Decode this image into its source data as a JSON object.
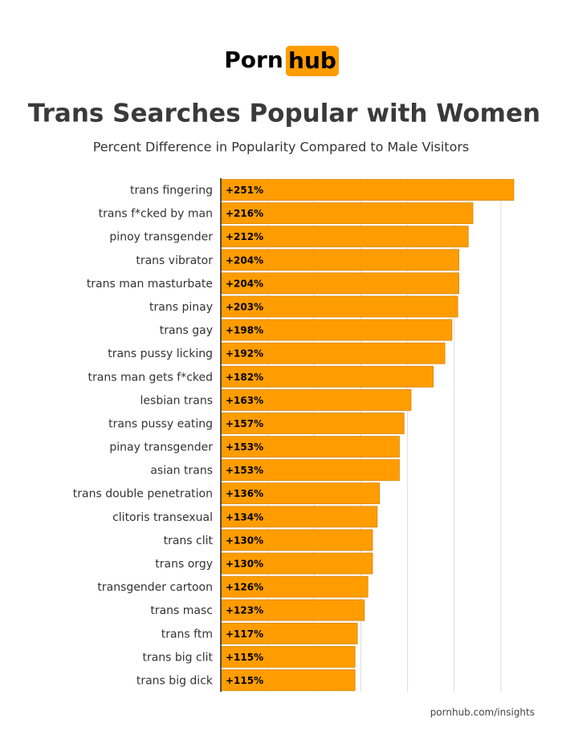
{
  "logo": {
    "left": "Porn",
    "right": "hub"
  },
  "footer": "pornhub.com/insights",
  "chart_data": {
    "type": "hbar",
    "title": "Trans Searches Popular with Women",
    "subtitle": "Percent Difference in Popularity Compared to Male Visitors",
    "categories": [
      "trans fingering",
      "trans f*cked by man",
      "pinoy transgender",
      "trans vibrator",
      "trans man masturbate",
      "trans pinay",
      "trans gay",
      "trans pussy licking",
      "trans man gets f*cked",
      "lesbian trans",
      "trans pussy eating",
      "pinay transgender",
      "asian trans",
      "trans double penetration",
      "clitoris transexual",
      "trans clit",
      "trans orgy",
      "transgender cartoon",
      "trans masc",
      "trans ftm",
      "trans big clit",
      "trans big dick"
    ],
    "values": [
      251,
      216,
      212,
      204,
      204,
      203,
      198,
      192,
      182,
      163,
      157,
      153,
      153,
      136,
      134,
      130,
      130,
      126,
      123,
      117,
      115,
      115
    ],
    "value_labels": [
      "+251%",
      "+216%",
      "+212%",
      "+204%",
      "+204%",
      "+203%",
      "+198%",
      "+192%",
      "+182%",
      "+163%",
      "+157%",
      "+153%",
      "+153%",
      "+136%",
      "+134%",
      "+130%",
      "+130%",
      "+126%",
      "+123%",
      "+117%",
      "+115%",
      "+115%"
    ],
    "color": "#ff9d00",
    "xlim": [
      0,
      260
    ],
    "xticks": [
      0,
      40,
      80,
      120,
      160,
      200,
      240
    ],
    "grid": true
  }
}
